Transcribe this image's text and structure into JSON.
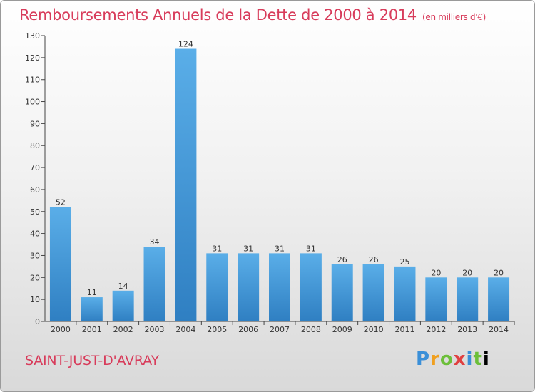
{
  "header": {
    "title": "Remboursements Annuels de la Dette de 2000 à 2014",
    "subtitle": "(en milliers d'€)"
  },
  "footer": {
    "town": "SAINT-JUST-D'AVRAY",
    "logo": "Proxiti"
  },
  "colors": {
    "title": "#d83c5b",
    "bar_light": "#5aaee8",
    "bar_dark": "#2f7fc2"
  },
  "chart_data": {
    "type": "bar",
    "title": "Remboursements Annuels de la Dette de 2000 à 2014",
    "subtitle": "(en milliers d'€)",
    "xlabel": "",
    "ylabel": "",
    "categories": [
      "2000",
      "2001",
      "2002",
      "2003",
      "2004",
      "2005",
      "2006",
      "2007",
      "2008",
      "2009",
      "2010",
      "2011",
      "2012",
      "2013",
      "2014"
    ],
    "values": [
      52,
      11,
      14,
      34,
      124,
      31,
      31,
      31,
      31,
      26,
      26,
      25,
      20,
      20,
      20
    ],
    "ylim": [
      0,
      130
    ],
    "yticks": [
      0,
      10,
      20,
      30,
      40,
      50,
      60,
      70,
      80,
      90,
      100,
      110,
      120,
      130
    ],
    "grid": false,
    "legend": "none"
  }
}
